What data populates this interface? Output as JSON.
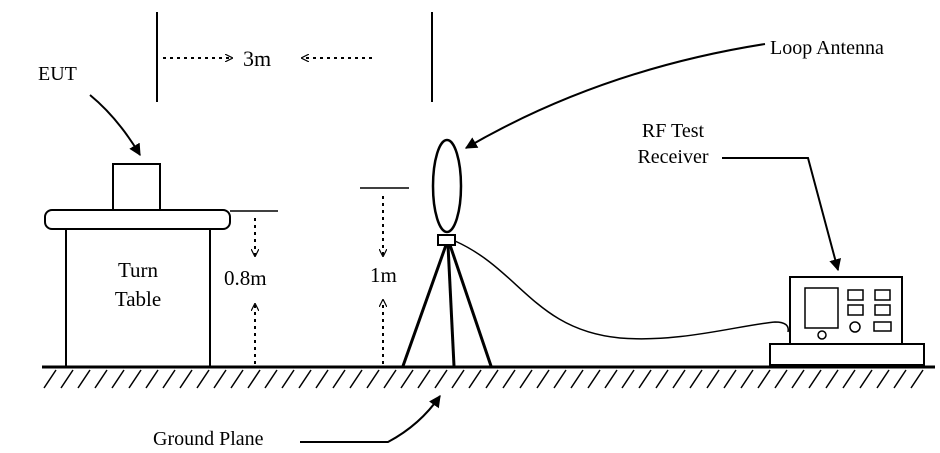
{
  "labels": {
    "eut": "EUT",
    "distance": "3m",
    "loop_antenna": "Loop Antenna",
    "receiver_line1": "RF Test",
    "receiver_line2": "Receiver",
    "turn_table_line1": "Turn",
    "turn_table_line2": "Table",
    "table_height": "0.8m",
    "antenna_height": "1m",
    "ground_plane": "Ground Plane"
  }
}
